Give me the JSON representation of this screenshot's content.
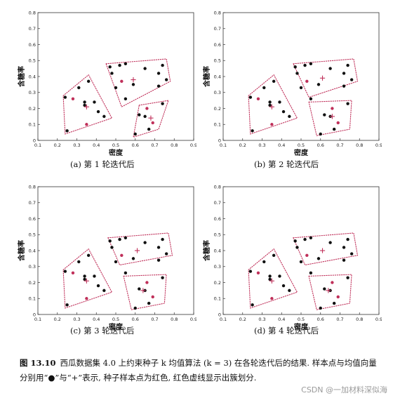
{
  "figure": {
    "caption_no": "图 13.10",
    "caption_text": "西瓜数据集 4.0 上约束种子 k 均值算法 (k = 3) 在各轮迭代后的结果. 样本点与均值向量分别用“●”与“+”表示, 种子样本点为红色, 红色虚线显示出簇划分.",
    "watermark": "CSDN @一加材料深似海"
  },
  "colors": {
    "sample": "#111111",
    "seed": "#c0305a",
    "mean": "#c0305a",
    "cluster_outline": "#c0305a"
  },
  "chart_data": [
    {
      "type": "scatter",
      "subcaption": "(a) 第 1 轮迭代后",
      "xlabel": "密度",
      "ylabel": "含糖率",
      "xlim": [
        0.1,
        0.9
      ],
      "ylim": [
        0,
        0.8
      ],
      "xticks": [
        "0.1",
        "0.2",
        "0.3",
        "0.4",
        "0.5",
        "0.6",
        "0.7",
        "0.8",
        "0.9"
      ],
      "yticks": [
        "0",
        "0.1",
        "0.2",
        "0.3",
        "0.4",
        "0.5",
        "0.6",
        "0.7",
        "0.8"
      ],
      "samples": [
        [
          0.24,
          0.27
        ],
        [
          0.31,
          0.33
        ],
        [
          0.34,
          0.24
        ],
        [
          0.36,
          0.37
        ],
        [
          0.34,
          0.22
        ],
        [
          0.39,
          0.24
        ],
        [
          0.41,
          0.18
        ],
        [
          0.44,
          0.15
        ],
        [
          0.25,
          0.06
        ],
        [
          0.47,
          0.46
        ],
        [
          0.52,
          0.47
        ],
        [
          0.48,
          0.42
        ],
        [
          0.55,
          0.48
        ],
        [
          0.5,
          0.33
        ],
        [
          0.55,
          0.26
        ],
        [
          0.59,
          0.35
        ],
        [
          0.65,
          0.45
        ],
        [
          0.72,
          0.42
        ],
        [
          0.74,
          0.47
        ],
        [
          0.76,
          0.38
        ],
        [
          0.72,
          0.34
        ],
        [
          0.65,
          0.15
        ],
        [
          0.67,
          0.07
        ],
        [
          0.74,
          0.23
        ],
        [
          0.62,
          0.16
        ],
        [
          0.6,
          0.04
        ]
      ],
      "seeds": [
        [
          0.28,
          0.26
        ],
        [
          0.35,
          0.1
        ],
        [
          0.53,
          0.37
        ],
        [
          0.66,
          0.2
        ],
        [
          0.69,
          0.11
        ]
      ],
      "means": [
        [
          0.35,
          0.21
        ],
        [
          0.59,
          0.38
        ],
        [
          0.68,
          0.14
        ]
      ],
      "clusters": [
        [
          [
            0.23,
            0.28
          ],
          [
            0.36,
            0.41
          ],
          [
            0.48,
            0.14
          ],
          [
            0.24,
            0.04
          ]
        ],
        [
          [
            0.45,
            0.48
          ],
          [
            0.76,
            0.51
          ],
          [
            0.78,
            0.37
          ],
          [
            0.53,
            0.21
          ]
        ],
        [
          [
            0.62,
            0.22
          ],
          [
            0.77,
            0.25
          ],
          [
            0.72,
            0.07
          ],
          [
            0.59,
            0.02
          ]
        ]
      ]
    },
    {
      "type": "scatter",
      "subcaption": "(b) 第 2 轮迭代后",
      "xlabel": "密度",
      "ylabel": "含糖率",
      "xlim": [
        0.1,
        0.9
      ],
      "ylim": [
        0,
        0.8
      ],
      "xticks": [
        "0.1",
        "0.2",
        "0.3",
        "0.4",
        "0.5",
        "0.6",
        "0.7",
        "0.8",
        "0.9"
      ],
      "yticks": [
        "0",
        "0.1",
        "0.2",
        "0.3",
        "0.4",
        "0.5",
        "0.6",
        "0.7",
        "0.8"
      ],
      "samples": [
        [
          0.24,
          0.27
        ],
        [
          0.31,
          0.33
        ],
        [
          0.34,
          0.24
        ],
        [
          0.36,
          0.37
        ],
        [
          0.34,
          0.22
        ],
        [
          0.39,
          0.24
        ],
        [
          0.41,
          0.18
        ],
        [
          0.44,
          0.15
        ],
        [
          0.25,
          0.06
        ],
        [
          0.47,
          0.46
        ],
        [
          0.52,
          0.47
        ],
        [
          0.48,
          0.42
        ],
        [
          0.55,
          0.48
        ],
        [
          0.5,
          0.33
        ],
        [
          0.55,
          0.26
        ],
        [
          0.59,
          0.35
        ],
        [
          0.65,
          0.45
        ],
        [
          0.72,
          0.42
        ],
        [
          0.74,
          0.47
        ],
        [
          0.76,
          0.38
        ],
        [
          0.72,
          0.34
        ],
        [
          0.65,
          0.15
        ],
        [
          0.67,
          0.07
        ],
        [
          0.74,
          0.23
        ],
        [
          0.62,
          0.16
        ],
        [
          0.6,
          0.04
        ]
      ],
      "seeds": [
        [
          0.28,
          0.26
        ],
        [
          0.35,
          0.1
        ],
        [
          0.53,
          0.37
        ],
        [
          0.66,
          0.2
        ],
        [
          0.69,
          0.11
        ]
      ],
      "means": [
        [
          0.35,
          0.21
        ],
        [
          0.61,
          0.39
        ],
        [
          0.66,
          0.15
        ]
      ],
      "clusters": [
        [
          [
            0.23,
            0.28
          ],
          [
            0.36,
            0.41
          ],
          [
            0.48,
            0.14
          ],
          [
            0.24,
            0.04
          ]
        ],
        [
          [
            0.46,
            0.48
          ],
          [
            0.77,
            0.51
          ],
          [
            0.79,
            0.37
          ],
          [
            0.54,
            0.27
          ]
        ],
        [
          [
            0.54,
            0.24
          ],
          [
            0.76,
            0.25
          ],
          [
            0.75,
            0.07
          ],
          [
            0.58,
            0.03
          ]
        ]
      ]
    },
    {
      "type": "scatter",
      "subcaption": "(c) 第 3 轮迭代后",
      "xlabel": "密度",
      "ylabel": "含糖率",
      "xlim": [
        0.1,
        0.9
      ],
      "ylim": [
        0,
        0.8
      ],
      "xticks": [
        "0.1",
        "0.2",
        "0.3",
        "0.4",
        "0.5",
        "0.6",
        "0.7",
        "0.8",
        "0.9"
      ],
      "yticks": [
        "0",
        "0.1",
        "0.2",
        "0.3",
        "0.4",
        "0.5",
        "0.6",
        "0.7",
        "0.8"
      ],
      "samples": [
        [
          0.24,
          0.27
        ],
        [
          0.31,
          0.33
        ],
        [
          0.34,
          0.24
        ],
        [
          0.36,
          0.37
        ],
        [
          0.34,
          0.22
        ],
        [
          0.39,
          0.24
        ],
        [
          0.41,
          0.18
        ],
        [
          0.44,
          0.15
        ],
        [
          0.25,
          0.06
        ],
        [
          0.47,
          0.46
        ],
        [
          0.52,
          0.47
        ],
        [
          0.48,
          0.42
        ],
        [
          0.55,
          0.48
        ],
        [
          0.5,
          0.33
        ],
        [
          0.55,
          0.26
        ],
        [
          0.59,
          0.35
        ],
        [
          0.65,
          0.45
        ],
        [
          0.72,
          0.42
        ],
        [
          0.74,
          0.47
        ],
        [
          0.76,
          0.38
        ],
        [
          0.72,
          0.34
        ],
        [
          0.65,
          0.15
        ],
        [
          0.67,
          0.07
        ],
        [
          0.74,
          0.23
        ],
        [
          0.62,
          0.16
        ],
        [
          0.6,
          0.04
        ]
      ],
      "seeds": [
        [
          0.28,
          0.26
        ],
        [
          0.35,
          0.1
        ],
        [
          0.53,
          0.37
        ],
        [
          0.66,
          0.2
        ],
        [
          0.69,
          0.11
        ]
      ],
      "means": [
        [
          0.35,
          0.21
        ],
        [
          0.61,
          0.4
        ],
        [
          0.64,
          0.15
        ]
      ],
      "clusters": [
        [
          [
            0.23,
            0.28
          ],
          [
            0.36,
            0.41
          ],
          [
            0.48,
            0.14
          ],
          [
            0.24,
            0.04
          ]
        ],
        [
          [
            0.46,
            0.48
          ],
          [
            0.77,
            0.51
          ],
          [
            0.79,
            0.37
          ],
          [
            0.52,
            0.31
          ]
        ],
        [
          [
            0.54,
            0.24
          ],
          [
            0.76,
            0.25
          ],
          [
            0.75,
            0.07
          ],
          [
            0.58,
            0.03
          ]
        ]
      ]
    },
    {
      "type": "scatter",
      "subcaption": "(d) 第 4 轮迭代后",
      "xlabel": "密度",
      "ylabel": "含糖率",
      "xlim": [
        0.1,
        0.9
      ],
      "ylim": [
        0,
        0.8
      ],
      "xticks": [
        "0.1",
        "0.2",
        "0.3",
        "0.4",
        "0.5",
        "0.6",
        "0.7",
        "0.8",
        "0.9"
      ],
      "yticks": [
        "0",
        "0.1",
        "0.2",
        "0.3",
        "0.4",
        "0.5",
        "0.6",
        "0.7",
        "0.8"
      ],
      "samples": [
        [
          0.24,
          0.27
        ],
        [
          0.31,
          0.33
        ],
        [
          0.34,
          0.24
        ],
        [
          0.36,
          0.37
        ],
        [
          0.34,
          0.22
        ],
        [
          0.39,
          0.24
        ],
        [
          0.41,
          0.18
        ],
        [
          0.44,
          0.15
        ],
        [
          0.25,
          0.06
        ],
        [
          0.47,
          0.46
        ],
        [
          0.52,
          0.47
        ],
        [
          0.48,
          0.42
        ],
        [
          0.55,
          0.48
        ],
        [
          0.5,
          0.33
        ],
        [
          0.55,
          0.26
        ],
        [
          0.59,
          0.35
        ],
        [
          0.65,
          0.45
        ],
        [
          0.72,
          0.42
        ],
        [
          0.74,
          0.47
        ],
        [
          0.76,
          0.38
        ],
        [
          0.72,
          0.34
        ],
        [
          0.65,
          0.15
        ],
        [
          0.67,
          0.07
        ],
        [
          0.74,
          0.23
        ],
        [
          0.62,
          0.16
        ],
        [
          0.6,
          0.04
        ]
      ],
      "seeds": [
        [
          0.28,
          0.26
        ],
        [
          0.35,
          0.1
        ],
        [
          0.53,
          0.37
        ],
        [
          0.66,
          0.2
        ],
        [
          0.69,
          0.11
        ]
      ],
      "means": [
        [
          0.35,
          0.21
        ],
        [
          0.61,
          0.4
        ],
        [
          0.64,
          0.15
        ]
      ],
      "clusters": [
        [
          [
            0.23,
            0.28
          ],
          [
            0.36,
            0.41
          ],
          [
            0.48,
            0.14
          ],
          [
            0.24,
            0.04
          ]
        ],
        [
          [
            0.46,
            0.48
          ],
          [
            0.77,
            0.51
          ],
          [
            0.79,
            0.37
          ],
          [
            0.52,
            0.31
          ]
        ],
        [
          [
            0.54,
            0.24
          ],
          [
            0.76,
            0.25
          ],
          [
            0.75,
            0.07
          ],
          [
            0.58,
            0.03
          ]
        ]
      ]
    }
  ]
}
